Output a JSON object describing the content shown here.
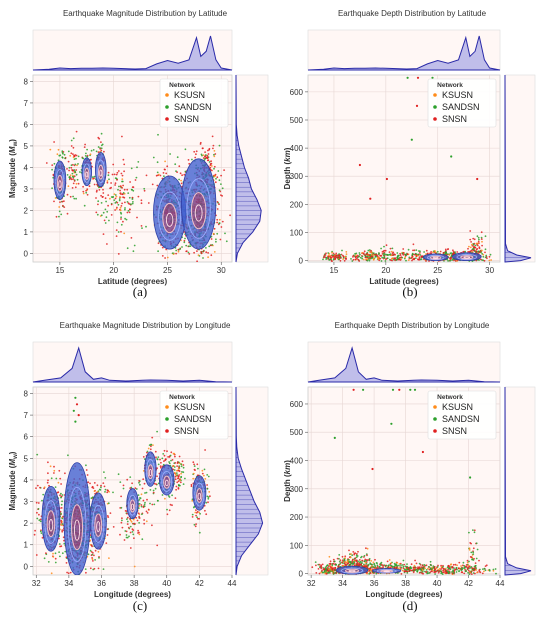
{
  "figure": {
    "captions": [
      "(a)",
      "(b)",
      "(c)",
      "(d)"
    ]
  },
  "colors": {
    "background": "#fff7f5",
    "marginal": "#2a2aa8",
    "KSUSN": "#ff8c1a",
    "SANDSN": "#2ca02c",
    "SNSN": "#e02020",
    "density_fill": "#3f5fd0",
    "density_line": "#f0c0c8"
  },
  "legend": {
    "title": "Network",
    "entries": [
      "KSUSN",
      "SANDSN",
      "SNSN"
    ]
  },
  "chart_data": [
    {
      "type": "scatter",
      "title": "Earthquake Magnitude Distribution by Latitude",
      "xlabel": "Latitude (degrees)",
      "ylabel": "Magnitude (M_w)",
      "ylabel_parts": {
        "base": "Magnitude (",
        "italic": "M",
        "sub": "w",
        "close": ")"
      },
      "xlim": [
        12.5,
        31
      ],
      "ylim": [
        -0.4,
        8.3
      ],
      "xticks": [
        15,
        20,
        25,
        30
      ],
      "yticks": [
        0,
        1,
        2,
        3,
        4,
        5,
        6,
        7,
        8
      ],
      "legend_position": "upper-right",
      "grid": true,
      "clusters": [
        {
          "x": 15.0,
          "y": 3.4,
          "sx": 0.35,
          "sy": 0.7,
          "n": 160
        },
        {
          "x": 16.3,
          "y": 4.0,
          "sx": 0.25,
          "sy": 0.6,
          "n": 60
        },
        {
          "x": 17.4,
          "y": 3.8,
          "sx": 0.25,
          "sy": 0.6,
          "n": 90
        },
        {
          "x": 18.7,
          "y": 3.9,
          "sx": 0.3,
          "sy": 0.7,
          "n": 120
        },
        {
          "x": 20.5,
          "y": 2.6,
          "sx": 1.0,
          "sy": 0.9,
          "n": 150
        },
        {
          "x": 25.2,
          "y": 2.0,
          "sx": 0.7,
          "sy": 1.0,
          "n": 350
        },
        {
          "x": 28.0,
          "y": 1.7,
          "sx": 0.9,
          "sy": 1.1,
          "n": 500
        },
        {
          "x": 28.6,
          "y": 3.8,
          "sx": 0.5,
          "sy": 0.7,
          "n": 150
        }
      ],
      "density_regions": [
        {
          "x": 15.0,
          "y": 3.4,
          "rx": 0.55,
          "ry": 0.9
        },
        {
          "x": 17.5,
          "y": 3.8,
          "rx": 0.45,
          "ry": 0.65
        },
        {
          "x": 18.8,
          "y": 3.9,
          "rx": 0.5,
          "ry": 0.8
        },
        {
          "x": 25.2,
          "y": 1.9,
          "rx": 1.5,
          "ry": 1.7
        },
        {
          "x": 27.9,
          "y": 2.3,
          "rx": 1.6,
          "ry": 2.1
        }
      ],
      "x_marginal": [
        [
          12.5,
          0
        ],
        [
          14,
          0.02
        ],
        [
          15,
          0.06
        ],
        [
          16,
          0.04
        ],
        [
          17,
          0.05
        ],
        [
          18,
          0.05
        ],
        [
          19,
          0.06
        ],
        [
          20,
          0.05
        ],
        [
          21,
          0.04
        ],
        [
          22,
          0.03
        ],
        [
          23,
          0.04
        ],
        [
          24,
          0.18
        ],
        [
          25,
          0.28
        ],
        [
          26,
          0.2
        ],
        [
          27,
          0.3
        ],
        [
          27.7,
          0.95
        ],
        [
          28.1,
          0.4
        ],
        [
          28.6,
          0.55
        ],
        [
          29,
          1.0
        ],
        [
          29.5,
          0.3
        ],
        [
          30,
          0.06
        ],
        [
          31,
          0
        ]
      ],
      "y_marginal": [
        [
          -0.4,
          0
        ],
        [
          0,
          0.05
        ],
        [
          0.5,
          0.25
        ],
        [
          1,
          0.6
        ],
        [
          1.5,
          0.85
        ],
        [
          2,
          0.9
        ],
        [
          2.5,
          0.75
        ],
        [
          3,
          0.55
        ],
        [
          3.5,
          0.45
        ],
        [
          4,
          0.3
        ],
        [
          4.5,
          0.2
        ],
        [
          5,
          0.1
        ],
        [
          5.5,
          0.04
        ],
        [
          6,
          0.01
        ],
        [
          8.3,
          0
        ]
      ]
    },
    {
      "type": "scatter",
      "title": "Earthquake Depth Distribution by Latitude",
      "xlabel": "Latitude (degrees)",
      "ylabel": "Depth (km)",
      "ylabel_parts": {
        "base": "Depth (",
        "italic": "km",
        "sub": "",
        "close": ")"
      },
      "xlim": [
        12.5,
        31
      ],
      "ylim": [
        -5,
        660
      ],
      "xticks": [
        15,
        20,
        25,
        30
      ],
      "yticks": [
        0,
        100,
        200,
        300,
        400,
        500,
        600
      ],
      "legend_position": "upper-right",
      "grid": true,
      "clusters": [
        {
          "x": 15.0,
          "y": 12,
          "sx": 0.5,
          "sy": 8,
          "n": 80
        },
        {
          "x": 18.5,
          "y": 15,
          "sx": 1.3,
          "sy": 12,
          "n": 150
        },
        {
          "x": 22.0,
          "y": 15,
          "sx": 1.8,
          "sy": 12,
          "n": 150
        },
        {
          "x": 26.5,
          "y": 14,
          "sx": 1.5,
          "sy": 10,
          "n": 350
        },
        {
          "x": 28.7,
          "y": 20,
          "sx": 0.4,
          "sy": 35,
          "n": 120
        }
      ],
      "outliers": [
        [
          22.1,
          650
        ],
        [
          23.1,
          650
        ],
        [
          23.0,
          550
        ],
        [
          24.5,
          650
        ],
        [
          22.5,
          430
        ],
        [
          26.3,
          370
        ],
        [
          17.5,
          340
        ],
        [
          28.8,
          290
        ],
        [
          20.1,
          290
        ],
        [
          18.5,
          220
        ]
      ],
      "density_regions": [
        {
          "x": 24.8,
          "y": 12,
          "rx": 1.2,
          "ry": 12
        },
        {
          "x": 27.8,
          "y": 14,
          "rx": 1.4,
          "ry": 14
        }
      ],
      "x_marginal": [
        [
          12.5,
          0
        ],
        [
          14,
          0.02
        ],
        [
          15,
          0.06
        ],
        [
          16,
          0.04
        ],
        [
          17,
          0.05
        ],
        [
          18,
          0.05
        ],
        [
          19,
          0.06
        ],
        [
          20,
          0.05
        ],
        [
          21,
          0.04
        ],
        [
          22,
          0.03
        ],
        [
          23,
          0.04
        ],
        [
          24,
          0.18
        ],
        [
          25,
          0.28
        ],
        [
          26,
          0.2
        ],
        [
          27,
          0.3
        ],
        [
          27.7,
          0.95
        ],
        [
          28.1,
          0.4
        ],
        [
          28.6,
          0.55
        ],
        [
          29,
          1.0
        ],
        [
          29.5,
          0.3
        ],
        [
          30,
          0.06
        ],
        [
          31,
          0
        ]
      ],
      "y_marginal": [
        [
          -5,
          0
        ],
        [
          0,
          0.6
        ],
        [
          10,
          1.0
        ],
        [
          20,
          0.45
        ],
        [
          35,
          0.1
        ],
        [
          60,
          0.02
        ],
        [
          660,
          0
        ]
      ]
    },
    {
      "type": "scatter",
      "title": "Earthquake Magnitude Distribution by Longitude",
      "xlabel": "Longitude (degrees)",
      "ylabel": "Magnitude (M_w)",
      "ylabel_parts": {
        "base": "Magnitude (",
        "italic": "M",
        "sub": "w",
        "close": ")"
      },
      "xlim": [
        31.8,
        44
      ],
      "ylim": [
        -0.4,
        8.3
      ],
      "xticks": [
        32,
        34,
        36,
        38,
        40,
        42,
        44
      ],
      "yticks": [
        0,
        1,
        2,
        3,
        4,
        5,
        6,
        7,
        8
      ],
      "legend_position": "upper-right",
      "grid": true,
      "clusters": [
        {
          "x": 33.0,
          "y": 2.3,
          "sx": 0.4,
          "sy": 0.9,
          "n": 300
        },
        {
          "x": 34.5,
          "y": 1.8,
          "sx": 0.45,
          "sy": 1.1,
          "n": 550
        },
        {
          "x": 35.7,
          "y": 2.2,
          "sx": 0.4,
          "sy": 0.9,
          "n": 220
        },
        {
          "x": 38.0,
          "y": 2.7,
          "sx": 0.5,
          "sy": 0.8,
          "n": 150
        },
        {
          "x": 39.0,
          "y": 4.5,
          "sx": 0.25,
          "sy": 0.6,
          "n": 80
        },
        {
          "x": 40.0,
          "y": 4.1,
          "sx": 0.3,
          "sy": 0.6,
          "n": 120
        },
        {
          "x": 40.6,
          "y": 4.3,
          "sx": 0.25,
          "sy": 0.5,
          "n": 70
        },
        {
          "x": 42.0,
          "y": 3.4,
          "sx": 0.25,
          "sy": 0.6,
          "n": 150
        }
      ],
      "outliers": [
        [
          34.4,
          7.8
        ],
        [
          34.5,
          7.5
        ],
        [
          34.3,
          7.2
        ],
        [
          34.6,
          7.0
        ],
        [
          34.4,
          6.7
        ]
      ],
      "density_regions": [
        {
          "x": 32.9,
          "y": 2.2,
          "rx": 0.55,
          "ry": 1.5
        },
        {
          "x": 34.5,
          "y": 2.2,
          "rx": 0.8,
          "ry": 2.6
        },
        {
          "x": 35.8,
          "y": 2.1,
          "rx": 0.5,
          "ry": 1.3
        },
        {
          "x": 37.9,
          "y": 2.9,
          "rx": 0.35,
          "ry": 0.7
        },
        {
          "x": 39.0,
          "y": 4.5,
          "rx": 0.35,
          "ry": 0.8
        },
        {
          "x": 40.0,
          "y": 4.0,
          "rx": 0.45,
          "ry": 0.7
        },
        {
          "x": 42.0,
          "y": 3.4,
          "rx": 0.4,
          "ry": 0.8
        }
      ],
      "x_marginal": [
        [
          31.8,
          0
        ],
        [
          32.5,
          0.05
        ],
        [
          33.5,
          0.12
        ],
        [
          34.2,
          0.4
        ],
        [
          34.6,
          1.0
        ],
        [
          35,
          0.3
        ],
        [
          35.5,
          0.08
        ],
        [
          36,
          0.12
        ],
        [
          36.5,
          0.05
        ],
        [
          37.5,
          0.03
        ],
        [
          38.5,
          0.05
        ],
        [
          39,
          0.06
        ],
        [
          40,
          0.05
        ],
        [
          41,
          0.03
        ],
        [
          42,
          0.05
        ],
        [
          43,
          0.01
        ],
        [
          44,
          0
        ]
      ],
      "y_marginal": [
        [
          -0.4,
          0
        ],
        [
          0,
          0.04
        ],
        [
          0.5,
          0.2
        ],
        [
          1,
          0.5
        ],
        [
          1.5,
          0.8
        ],
        [
          2,
          0.95
        ],
        [
          2.5,
          0.85
        ],
        [
          3,
          0.65
        ],
        [
          3.5,
          0.5
        ],
        [
          4,
          0.35
        ],
        [
          4.5,
          0.2
        ],
        [
          5,
          0.08
        ],
        [
          5.5,
          0.03
        ],
        [
          6,
          0.01
        ],
        [
          8.3,
          0
        ]
      ]
    },
    {
      "type": "scatter",
      "title": "Earthquake Depth Distribution by Longitude",
      "xlabel": "Longitude (degrees)",
      "ylabel": "Depth (km)",
      "ylabel_parts": {
        "base": "Depth (",
        "italic": "km",
        "sub": "",
        "close": ")"
      },
      "xlim": [
        31.8,
        44
      ],
      "ylim": [
        -5,
        660
      ],
      "xticks": [
        32,
        34,
        36,
        38,
        40,
        42,
        44
      ],
      "yticks": [
        0,
        100,
        200,
        300,
        400,
        500,
        600
      ],
      "legend_position": "upper-right",
      "grid": true,
      "clusters": [
        {
          "x": 33.5,
          "y": 14,
          "sx": 0.6,
          "sy": 12,
          "n": 200
        },
        {
          "x": 34.8,
          "y": 20,
          "sx": 0.6,
          "sy": 25,
          "n": 350
        },
        {
          "x": 36.5,
          "y": 15,
          "sx": 0.8,
          "sy": 12,
          "n": 150
        },
        {
          "x": 38.5,
          "y": 15,
          "sx": 1.0,
          "sy": 12,
          "n": 150
        },
        {
          "x": 41.0,
          "y": 14,
          "sx": 1.2,
          "sy": 10,
          "n": 200
        },
        {
          "x": 42.3,
          "y": 40,
          "sx": 0.2,
          "sy": 60,
          "n": 50
        }
      ],
      "outliers": [
        [
          34.7,
          650
        ],
        [
          35.3,
          650
        ],
        [
          37.2,
          650
        ],
        [
          37.6,
          650
        ],
        [
          38.3,
          650
        ],
        [
          38.6,
          650
        ],
        [
          35.9,
          370
        ],
        [
          39.1,
          430
        ],
        [
          33.5,
          480
        ],
        [
          42.1,
          340
        ],
        [
          37.1,
          530
        ]
      ],
      "density_regions": [
        {
          "x": 34.6,
          "y": 12,
          "rx": 1.0,
          "ry": 14
        },
        {
          "x": 36.8,
          "y": 10,
          "rx": 0.9,
          "ry": 8
        }
      ],
      "x_marginal": [
        [
          31.8,
          0
        ],
        [
          32.5,
          0.05
        ],
        [
          33.5,
          0.12
        ],
        [
          34.2,
          0.4
        ],
        [
          34.6,
          1.0
        ],
        [
          35,
          0.3
        ],
        [
          35.5,
          0.08
        ],
        [
          36,
          0.12
        ],
        [
          36.5,
          0.05
        ],
        [
          37.5,
          0.03
        ],
        [
          38.5,
          0.05
        ],
        [
          39,
          0.06
        ],
        [
          40,
          0.05
        ],
        [
          41,
          0.03
        ],
        [
          42,
          0.05
        ],
        [
          43,
          0.01
        ],
        [
          44,
          0
        ]
      ],
      "y_marginal": [
        [
          -5,
          0
        ],
        [
          0,
          0.6
        ],
        [
          10,
          1.0
        ],
        [
          20,
          0.45
        ],
        [
          35,
          0.1
        ],
        [
          60,
          0.02
        ],
        [
          660,
          0
        ]
      ]
    }
  ]
}
